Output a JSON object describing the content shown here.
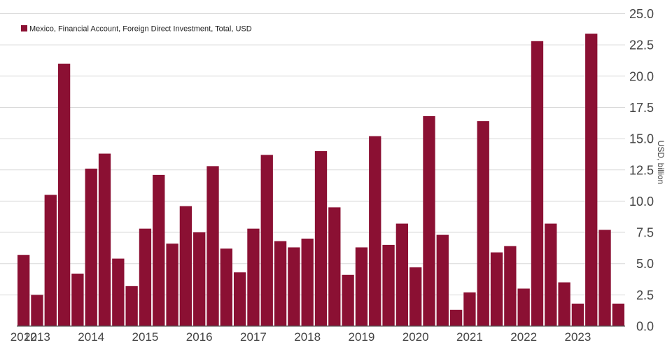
{
  "chart_data": {
    "type": "bar",
    "title": "",
    "xlabel": "",
    "ylabel": "USD, billion",
    "ylim": [
      0,
      25
    ],
    "y_ticks": [
      "0.0",
      "2.5",
      "5.0",
      "7.5",
      "10.0",
      "12.5",
      "15.0",
      "17.5",
      "20.0",
      "22.5",
      "25.0"
    ],
    "x_tick_labels": [
      "2012",
      "2013",
      "2014",
      "2015",
      "2016",
      "2017",
      "2018",
      "2019",
      "2020",
      "2021",
      "2022",
      "2023"
    ],
    "bar_color": "#8b1033",
    "series": [
      {
        "name": "Mexico, Financial Account, Foreign Direct Investment, Total, USD",
        "values": [
          5.7,
          2.5,
          10.5,
          21.0,
          4.2,
          12.6,
          13.8,
          5.4,
          3.2,
          7.8,
          12.1,
          6.6,
          9.6,
          7.5,
          12.8,
          6.2,
          4.3,
          7.8,
          13.7,
          6.8,
          6.3,
          7.0,
          14.0,
          9.5,
          4.1,
          6.3,
          15.2,
          6.5,
          8.2,
          4.7,
          16.8,
          7.3,
          1.3,
          2.7,
          16.4,
          5.9,
          6.4,
          3.0,
          22.8,
          8.2,
          3.5,
          1.8,
          23.4,
          7.7,
          1.8
        ]
      }
    ]
  }
}
